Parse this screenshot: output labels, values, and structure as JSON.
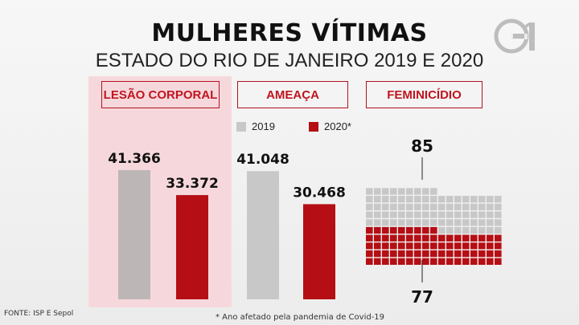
{
  "title": "MULHERES VÍTIMAS",
  "subtitle": "ESTADO DO RIO DE JANEIRO 2019 E 2020",
  "tabs": [
    "LESÃO CORPORAL",
    "AMEAÇA",
    "FEMINICÍDIO"
  ],
  "legend": [
    {
      "label": "2019",
      "color": "#c8c8c8"
    },
    {
      "label": "2020*",
      "color": "#b50e14"
    }
  ],
  "footer": {
    "source": "FONTE: ISP E Sepol",
    "note": "* Ano afetado pela pandemia de Covid-19"
  },
  "logo_icon": "g1-logo-icon",
  "chart_data": [
    {
      "type": "bar",
      "title": "LESÃO CORPORAL",
      "categories": [
        "2019",
        "2020*"
      ],
      "values": [
        41366,
        33372
      ],
      "labels": [
        "41.366",
        "33.372"
      ],
      "colors": [
        "#bdb6b6",
        "#b50e14"
      ]
    },
    {
      "type": "bar",
      "title": "AMEAÇA",
      "categories": [
        "2019",
        "2020*"
      ],
      "values": [
        41048,
        30468
      ],
      "labels": [
        "41.048",
        "30.468"
      ],
      "colors": [
        "#c8c8c8",
        "#b50e14"
      ]
    },
    {
      "type": "waffle",
      "title": "FEMINICÍDIO",
      "categories": [
        "2019",
        "2020*"
      ],
      "values": [
        85,
        77
      ],
      "labels": [
        "85",
        "77"
      ],
      "colors": [
        "#c8c8c8",
        "#b50e14"
      ]
    }
  ]
}
